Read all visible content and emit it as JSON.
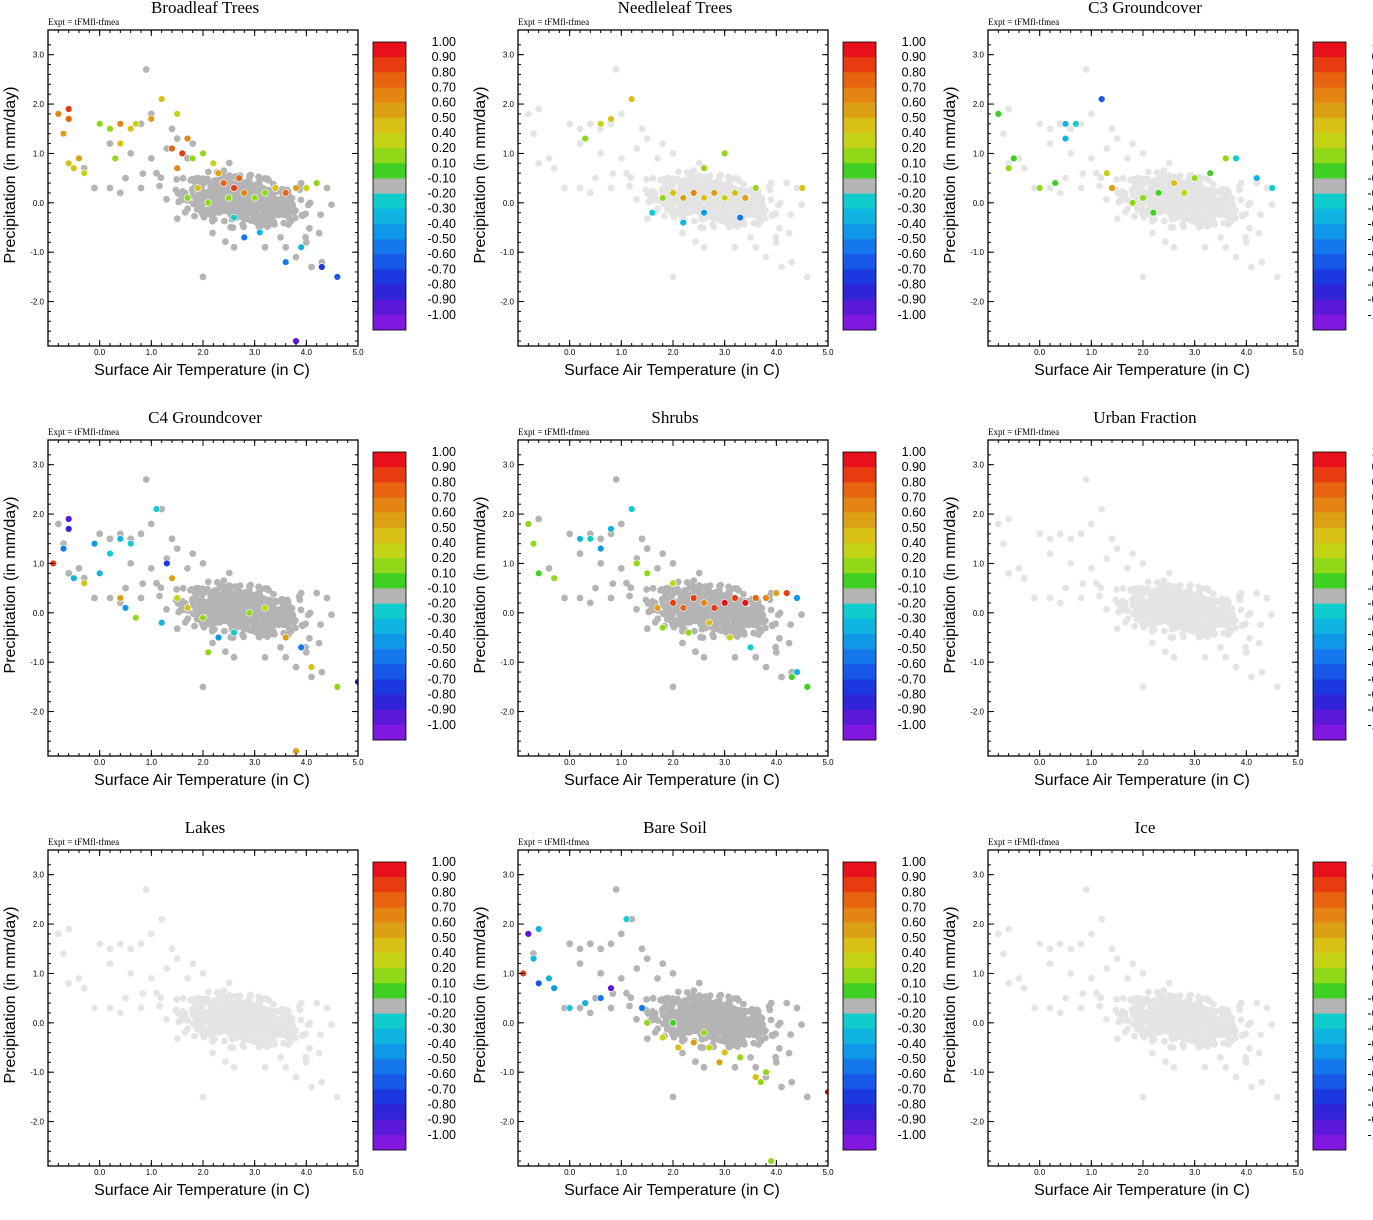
{
  "chart_data": {
    "type": "scatter",
    "expt_label": "Expt = tFMfl-tfmea",
    "xlabel": "Surface Air Temperature (in C)",
    "ylabel": "Precipitation (in mm/day)",
    "xlim": [
      -1.0,
      5.0
    ],
    "ylim": [
      -2.9,
      3.5
    ],
    "xticks": [
      "0.0",
      "1.0",
      "2.0",
      "3.0",
      "4.0",
      "5.0"
    ],
    "yticks": [
      "3.0",
      "2.0",
      "1.0",
      "0.0",
      "-1.0",
      "-2.0"
    ],
    "colorbar": {
      "labels": [
        "1.00",
        "0.90",
        "0.80",
        "0.70",
        "0.60",
        "0.50",
        "0.40",
        "0.20",
        "0.10",
        "-0.10",
        "-0.20",
        "-0.30",
        "-0.40",
        "-0.50",
        "-0.60",
        "-0.70",
        "-0.80",
        "-0.90",
        "-1.00"
      ],
      "colors": [
        "#e8101a",
        "#e83c10",
        "#e86410",
        "#e48412",
        "#dca014",
        "#d8c014",
        "#c4d414",
        "#90d818",
        "#40d024",
        "#b4b4b4",
        "#10cccc",
        "#10b4e0",
        "#1098e8",
        "#1478ec",
        "#1858e8",
        "#1c38e0",
        "#3024d8",
        "#5a18d8",
        "#8018e0"
      ]
    },
    "panels": [
      {
        "title": "Broadleaf Trees",
        "background": "#b4b4b4",
        "colored_points": [
          [
            -0.8,
            1.8,
            0.7
          ],
          [
            -0.6,
            1.9,
            0.9
          ],
          [
            -0.6,
            1.7,
            0.8
          ],
          [
            -0.7,
            1.4,
            0.6
          ],
          [
            -0.6,
            0.8,
            0.5
          ],
          [
            -0.4,
            0.9,
            0.6
          ],
          [
            -0.5,
            0.7,
            0.5
          ],
          [
            -0.3,
            0.6,
            0.4
          ],
          [
            0,
            1.6,
            0.3
          ],
          [
            0.2,
            1.5,
            0.2
          ],
          [
            0.4,
            1.6,
            0.7
          ],
          [
            0.6,
            1.5,
            0.5
          ],
          [
            0.7,
            1.6,
            0.4
          ],
          [
            0.4,
            1.2,
            0.5
          ],
          [
            0.3,
            0.9,
            0.3
          ],
          [
            1.0,
            1.7,
            0.6
          ],
          [
            1.2,
            2.1,
            0.5
          ],
          [
            1.5,
            1.8,
            0.4
          ],
          [
            1.4,
            1.1,
            0.8
          ],
          [
            1.6,
            1.0,
            0.9
          ],
          [
            1.5,
            0.7,
            0.7
          ],
          [
            1.8,
            0.9,
            0.3
          ],
          [
            2.0,
            1.0,
            0.2
          ],
          [
            2.3,
            0.6,
            0.6
          ],
          [
            2.4,
            0.4,
            0.8
          ],
          [
            2.6,
            0.3,
            0.9
          ],
          [
            2.8,
            0.2,
            0.7
          ],
          [
            3.0,
            0.1,
            0.3
          ],
          [
            3.2,
            0.2,
            0.2
          ],
          [
            3.4,
            0.3,
            0.5
          ],
          [
            3.6,
            0.2,
            0.8
          ],
          [
            3.8,
            0.3,
            0.6
          ],
          [
            4.0,
            0.3,
            0.4
          ],
          [
            4.2,
            0.4,
            0.2
          ],
          [
            1.7,
            0.1,
            0.2
          ],
          [
            1.9,
            0.3,
            0.5
          ],
          [
            2.1,
            0.0,
            0.3
          ],
          [
            2.5,
            0.1,
            0.2
          ],
          [
            2.7,
            0.5,
            0.8
          ],
          [
            2.2,
            0.8,
            0.4
          ],
          [
            1.7,
            1.3,
            0.7
          ],
          [
            2.6,
            -0.3,
            -0.2
          ],
          [
            2.8,
            -0.7,
            -0.5
          ],
          [
            3.1,
            -0.6,
            -0.3
          ],
          [
            3.6,
            -1.2,
            -0.5
          ],
          [
            3.9,
            -0.9,
            -0.3
          ],
          [
            4.3,
            -1.3,
            -0.7
          ],
          [
            4.6,
            -1.5,
            -0.6
          ],
          [
            3.8,
            -2.8,
            -0.9
          ]
        ]
      },
      {
        "title": "Needleleaf Trees",
        "background": "#e4e4e4",
        "colored_points": [
          [
            0.6,
            1.6,
            0.4
          ],
          [
            0.8,
            1.7,
            0.5
          ],
          [
            1.2,
            2.1,
            0.5
          ],
          [
            0.3,
            1.3,
            0.3
          ],
          [
            2.0,
            0.2,
            0.5
          ],
          [
            2.2,
            0.1,
            0.6
          ],
          [
            2.4,
            0.2,
            0.7
          ],
          [
            2.6,
            0.1,
            0.5
          ],
          [
            2.8,
            0.2,
            0.6
          ],
          [
            3.0,
            0.1,
            0.4
          ],
          [
            3.2,
            0.2,
            0.5
          ],
          [
            3.4,
            0.1,
            0.6
          ],
          [
            1.8,
            0.1,
            0.2
          ],
          [
            3.6,
            0.3,
            0.3
          ],
          [
            4.5,
            0.3,
            0.5
          ],
          [
            3.0,
            1.0,
            0.3
          ],
          [
            2.6,
            0.7,
            0.2
          ],
          [
            2.2,
            -0.4,
            -0.3
          ],
          [
            2.6,
            -0.2,
            -0.4
          ],
          [
            3.3,
            -0.3,
            -0.5
          ],
          [
            1.6,
            -0.2,
            -0.2
          ]
        ]
      },
      {
        "title": "C3 Groundcover",
        "background": "#e4e4e4",
        "colored_points": [
          [
            -0.8,
            1.8,
            0.1
          ],
          [
            -0.5,
            0.9,
            0.1
          ],
          [
            -0.6,
            0.7,
            0.2
          ],
          [
            0.0,
            0.3,
            0.2
          ],
          [
            0.3,
            0.4,
            0.1
          ],
          [
            0.5,
            1.6,
            -0.3
          ],
          [
            0.7,
            1.6,
            -0.2
          ],
          [
            0.5,
            1.3,
            -0.3
          ],
          [
            1.2,
            2.1,
            -0.6
          ],
          [
            1.3,
            0.6,
            0.4
          ],
          [
            1.4,
            0.3,
            0.6
          ],
          [
            2.0,
            0.1,
            0.2
          ],
          [
            2.3,
            0.2,
            0.1
          ],
          [
            2.6,
            0.4,
            0.5
          ],
          [
            2.8,
            0.2,
            0.4
          ],
          [
            3.0,
            0.5,
            0.2
          ],
          [
            3.3,
            0.6,
            0.1
          ],
          [
            3.6,
            0.9,
            0.2
          ],
          [
            3.8,
            0.9,
            -0.2
          ],
          [
            4.2,
            0.5,
            -0.3
          ],
          [
            4.5,
            0.3,
            -0.2
          ],
          [
            2.2,
            -0.2,
            0.1
          ],
          [
            1.8,
            0.0,
            0.3
          ]
        ]
      },
      {
        "title": "C4 Groundcover",
        "background": "#b4b4b4",
        "colored_points": [
          [
            -0.9,
            1.0,
            0.9
          ],
          [
            -0.6,
            1.9,
            -0.9
          ],
          [
            -0.6,
            1.7,
            -0.8
          ],
          [
            -0.7,
            1.3,
            -0.5
          ],
          [
            -0.5,
            0.7,
            -0.3
          ],
          [
            -0.3,
            0.6,
            0.5
          ],
          [
            -0.1,
            1.4,
            -0.4
          ],
          [
            0.0,
            0.8,
            -0.3
          ],
          [
            0.2,
            1.2,
            -0.2
          ],
          [
            0.4,
            1.5,
            -0.3
          ],
          [
            0.6,
            1.4,
            -0.2
          ],
          [
            0.4,
            0.3,
            0.6
          ],
          [
            0.5,
            0.1,
            -0.4
          ],
          [
            0.7,
            -0.1,
            0.2
          ],
          [
            1.1,
            2.1,
            -0.2
          ],
          [
            1.3,
            1.0,
            -0.7
          ],
          [
            1.4,
            0.7,
            0.6
          ],
          [
            1.5,
            0.3,
            0.4
          ],
          [
            1.7,
            0.1,
            0.5
          ],
          [
            2.0,
            -0.1,
            0.3
          ],
          [
            2.3,
            -0.5,
            -0.4
          ],
          [
            2.6,
            -0.4,
            -0.2
          ],
          [
            2.9,
            0.0,
            0.2
          ],
          [
            3.2,
            0.1,
            0.4
          ],
          [
            3.6,
            -0.5,
            0.6
          ],
          [
            4.1,
            -1.1,
            0.5
          ],
          [
            4.6,
            -1.5,
            0.2
          ],
          [
            5.0,
            -1.4,
            -0.9
          ],
          [
            3.8,
            -2.8,
            0.6
          ],
          [
            1.2,
            -0.2,
            -0.3
          ],
          [
            2.1,
            -0.8,
            0.3
          ],
          [
            3.9,
            -0.7,
            -0.5
          ]
        ]
      },
      {
        "title": "Shrubs",
        "background": "#b4b4b4",
        "colored_points": [
          [
            -0.8,
            1.8,
            0.2
          ],
          [
            -0.7,
            1.4,
            0.2
          ],
          [
            -0.6,
            0.8,
            0.1
          ],
          [
            -0.3,
            0.7,
            0.2
          ],
          [
            0.2,
            1.5,
            -0.3
          ],
          [
            0.4,
            1.5,
            -0.2
          ],
          [
            0.6,
            1.3,
            -0.4
          ],
          [
            0.8,
            1.7,
            -0.3
          ],
          [
            1.2,
            2.1,
            -0.2
          ],
          [
            1.3,
            1.0,
            0.3
          ],
          [
            1.5,
            0.8,
            0.2
          ],
          [
            1.7,
            0.1,
            0.6
          ],
          [
            2.0,
            0.2,
            0.9
          ],
          [
            2.2,
            0.1,
            0.8
          ],
          [
            2.4,
            0.3,
            0.9
          ],
          [
            2.6,
            0.2,
            0.7
          ],
          [
            2.8,
            0.1,
            0.9
          ],
          [
            3.0,
            0.2,
            1.0
          ],
          [
            3.2,
            0.3,
            0.9
          ],
          [
            3.4,
            0.2,
            1.0
          ],
          [
            3.6,
            0.3,
            0.8
          ],
          [
            3.8,
            0.3,
            0.7
          ],
          [
            4.0,
            0.4,
            0.6
          ],
          [
            4.2,
            0.4,
            0.9
          ],
          [
            4.4,
            0.3,
            -0.4
          ],
          [
            1.8,
            -0.3,
            0.2
          ],
          [
            2.3,
            -0.4,
            0.3
          ],
          [
            2.7,
            -0.2,
            0.5
          ],
          [
            3.1,
            -0.5,
            0.4
          ],
          [
            3.5,
            -0.7,
            -0.2
          ],
          [
            4.3,
            -1.3,
            0.1
          ],
          [
            4.6,
            -1.5,
            0.1
          ],
          [
            4.4,
            -1.2,
            -0.3
          ],
          [
            2.0,
            0.6,
            0.4
          ]
        ]
      },
      {
        "title": "Urban Fraction",
        "background": "#e4e4e4",
        "colored_points": []
      },
      {
        "title": "Lakes",
        "background": "#e4e4e4",
        "colored_points": []
      },
      {
        "title": "Bare Soil",
        "background": "#b4b4b4",
        "colored_points": [
          [
            -0.9,
            1.0,
            0.9
          ],
          [
            -0.8,
            1.8,
            -0.9
          ],
          [
            -0.7,
            1.3,
            -0.3
          ],
          [
            -0.6,
            1.9,
            -0.3
          ],
          [
            -0.6,
            0.8,
            -0.6
          ],
          [
            -0.4,
            0.9,
            -0.3
          ],
          [
            -0.3,
            0.7,
            -0.4
          ],
          [
            0.0,
            0.3,
            -0.2
          ],
          [
            0.3,
            0.4,
            -0.3
          ],
          [
            0.6,
            0.5,
            -0.5
          ],
          [
            0.8,
            0.7,
            -0.9
          ],
          [
            1.1,
            2.1,
            -0.2
          ],
          [
            1.4,
            0.3,
            -0.5
          ],
          [
            1.5,
            0.0,
            0.2
          ],
          [
            1.8,
            -0.3,
            0.4
          ],
          [
            2.1,
            -0.5,
            0.5
          ],
          [
            2.4,
            -0.4,
            0.6
          ],
          [
            2.7,
            -0.5,
            0.4
          ],
          [
            3.0,
            -0.6,
            0.5
          ],
          [
            3.3,
            -0.7,
            0.3
          ],
          [
            2.6,
            -0.2,
            0.2
          ],
          [
            3.6,
            -1.1,
            0.5
          ],
          [
            3.8,
            -1.0,
            0.2
          ],
          [
            3.7,
            -1.2,
            0.3
          ],
          [
            3.9,
            -2.8,
            0.2
          ],
          [
            5.0,
            -1.4,
            0.9
          ],
          [
            2.0,
            0.0,
            0.1
          ],
          [
            2.9,
            -0.8,
            0.6
          ]
        ]
      },
      {
        "title": "Ice",
        "background": "#e4e4e4",
        "colored_points": []
      }
    ]
  }
}
